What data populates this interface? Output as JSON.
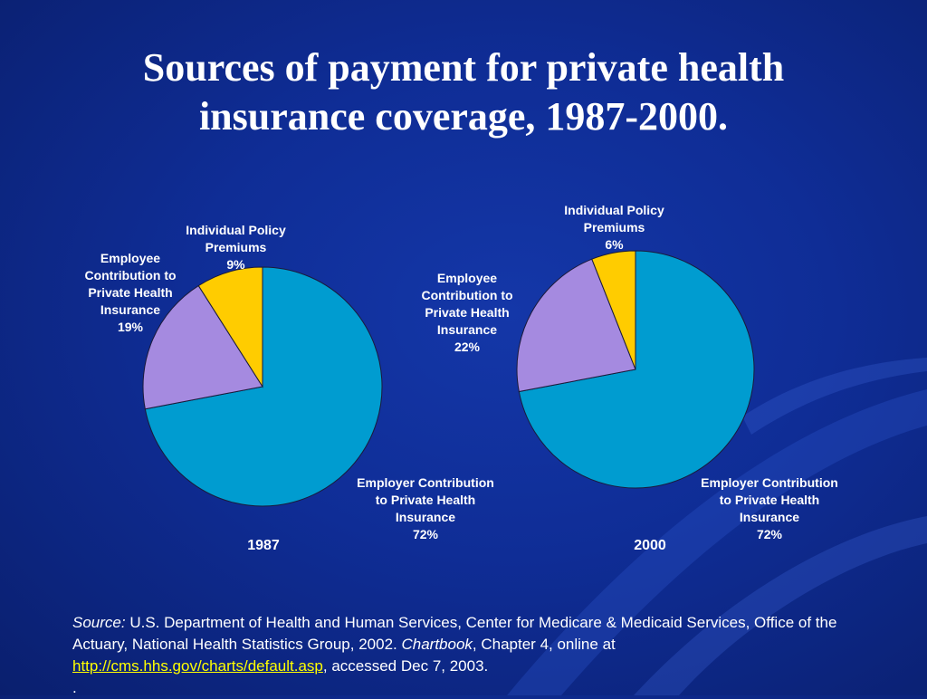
{
  "title": {
    "line1": "Sources of payment for private health",
    "line2": "insurance coverage, 1987-2000."
  },
  "colors": {
    "employer": "#009cd0",
    "employee": "#a58ae0",
    "individual": "#ffcc00",
    "background": "#0f2d96",
    "link": "#ffff00"
  },
  "chart_data": [
    {
      "type": "pie",
      "label": "1987",
      "slices": [
        {
          "name": "Employer Contribution to Private Health Insurance",
          "value": 72,
          "label_lines": [
            "Employer Contribution",
            "to Private Health",
            "Insurance",
            "72%"
          ]
        },
        {
          "name": "Employee Contribution to Private Health Insurance",
          "value": 19,
          "label_lines": [
            "Employee",
            "Contribution to",
            "Private Health",
            "Insurance",
            "19%"
          ]
        },
        {
          "name": "Individual Policy Premiums",
          "value": 9,
          "label_lines": [
            "Individual Policy",
            "Premiums",
            "9%"
          ]
        }
      ]
    },
    {
      "type": "pie",
      "label": "2000",
      "slices": [
        {
          "name": "Employer Contribution to Private Health Insurance",
          "value": 72,
          "label_lines": [
            "Employer Contribution",
            "to Private Health",
            "Insurance",
            "72%"
          ]
        },
        {
          "name": "Employee Contribution to Private Health Insurance",
          "value": 22,
          "label_lines": [
            "Employee",
            "Contribution to",
            "Private Health",
            "Insurance",
            "22%"
          ]
        },
        {
          "name": "Individual Policy Premiums",
          "value": 6,
          "label_lines": [
            "Individual Policy",
            "Premiums",
            "6%"
          ]
        }
      ]
    }
  ],
  "source": {
    "prefix": "Source:",
    "text1": " U.S. Department of Health and Human Services, Center for Medicare & Medicaid Services, Office of the Actuary, National Health Statistics Group, 2002. ",
    "book": "Chartbook",
    "text2": ", Chapter 4, online at ",
    "link": "http://cms.hhs.gov/charts/default.asp",
    "text3": ", accessed Dec 7, 2003.",
    "trailing": "."
  }
}
